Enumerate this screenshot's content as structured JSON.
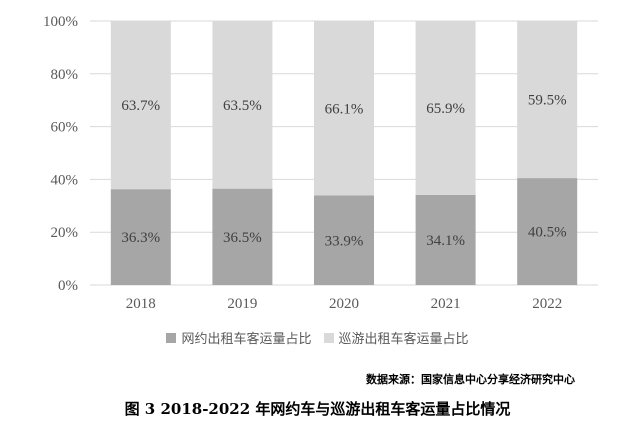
{
  "chart_data": {
    "type": "bar",
    "stacked": true,
    "categories": [
      "2018",
      "2019",
      "2020",
      "2021",
      "2022"
    ],
    "series": [
      {
        "name": "网约出租车客运量占比",
        "values": [
          36.3,
          36.5,
          33.9,
          34.1,
          40.5
        ],
        "labels": [
          "36.3%",
          "36.5%",
          "33.9%",
          "34.1%",
          "40.5%"
        ],
        "color": "#a6a6a6"
      },
      {
        "name": "巡游出租车客运量占比",
        "values": [
          63.7,
          63.5,
          66.1,
          65.9,
          59.5
        ],
        "labels": [
          "63.7%",
          "63.5%",
          "66.1%",
          "65.9%",
          "59.5%"
        ],
        "color": "#d9d9d9"
      }
    ],
    "y_ticks": [
      "0%",
      "20%",
      "40%",
      "60%",
      "80%",
      "100%"
    ],
    "ylim": [
      0,
      100
    ],
    "grid": true,
    "legend_position": "bottom"
  },
  "source_note": "数据来源：国家信息中心分享经济研究中心",
  "caption": "图 3  2018-2022 年网约车与巡游出租车客运量占比情况",
  "colors": {
    "gridline": "#d9d9d9",
    "axis_text": "#595959"
  }
}
